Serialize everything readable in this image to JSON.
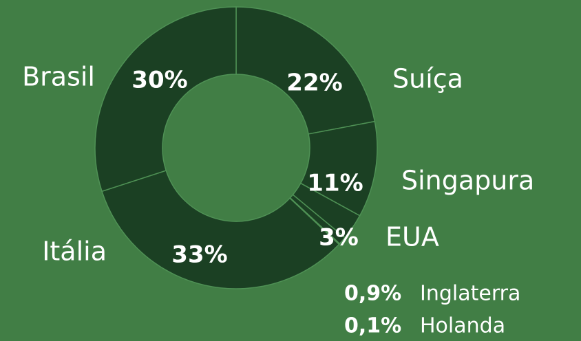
{
  "chart_data": {
    "type": "pie",
    "categories": [
      "Suíça",
      "Singapura",
      "EUA",
      "Inglaterra",
      "Holanda",
      "Itália",
      "Brasil"
    ],
    "values": [
      22,
      11,
      3,
      0.9,
      0.1,
      33,
      30
    ],
    "value_labels": [
      "22%",
      "11%",
      "3%",
      "0,9%",
      "0,1%",
      "33%",
      "30%"
    ],
    "color": "#1b4023"
  }
}
